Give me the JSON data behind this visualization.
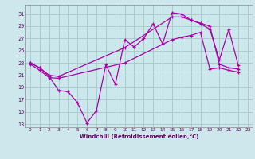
{
  "xlabel": "Windchill (Refroidissement éolien,°C)",
  "bg_color": "#cce8ec",
  "grid_color": "#aacccc",
  "line_color": "#aa00aa",
  "xlim": [
    -0.5,
    23.5
  ],
  "ylim": [
    12.5,
    32.5
  ],
  "yticks": [
    13,
    15,
    17,
    19,
    21,
    23,
    25,
    27,
    29,
    31
  ],
  "xticks": [
    0,
    1,
    2,
    3,
    4,
    5,
    6,
    7,
    8,
    9,
    10,
    11,
    12,
    13,
    14,
    15,
    16,
    17,
    18,
    19,
    20,
    21,
    22,
    23
  ],
  "line1_x": [
    0,
    1,
    2,
    3,
    4,
    5,
    6,
    7,
    8,
    9,
    10,
    11,
    12,
    13,
    14,
    15,
    16,
    17,
    18,
    19,
    20,
    21,
    22
  ],
  "line1_y": [
    23.0,
    22.2,
    20.8,
    18.5,
    18.3,
    16.5,
    13.2,
    15.2,
    22.7,
    19.5,
    26.8,
    25.6,
    27.0,
    29.4,
    26.1,
    31.2,
    31.0,
    30.0,
    29.4,
    28.5,
    23.5,
    28.5,
    22.6
  ],
  "line2_x": [
    0,
    1,
    2,
    3,
    10,
    15,
    16,
    17,
    18,
    19,
    20,
    21,
    22
  ],
  "line2_y": [
    23.0,
    22.2,
    21.0,
    20.8,
    25.5,
    30.5,
    30.5,
    30.0,
    29.5,
    29.0,
    22.8,
    22.2,
    22.0
  ],
  "line3_x": [
    0,
    1,
    2,
    3,
    10,
    15,
    16,
    17,
    18,
    19,
    20,
    21,
    22
  ],
  "line3_y": [
    22.8,
    21.8,
    20.6,
    20.5,
    23.0,
    26.8,
    27.2,
    27.5,
    28.0,
    22.0,
    22.2,
    21.8,
    21.5
  ]
}
